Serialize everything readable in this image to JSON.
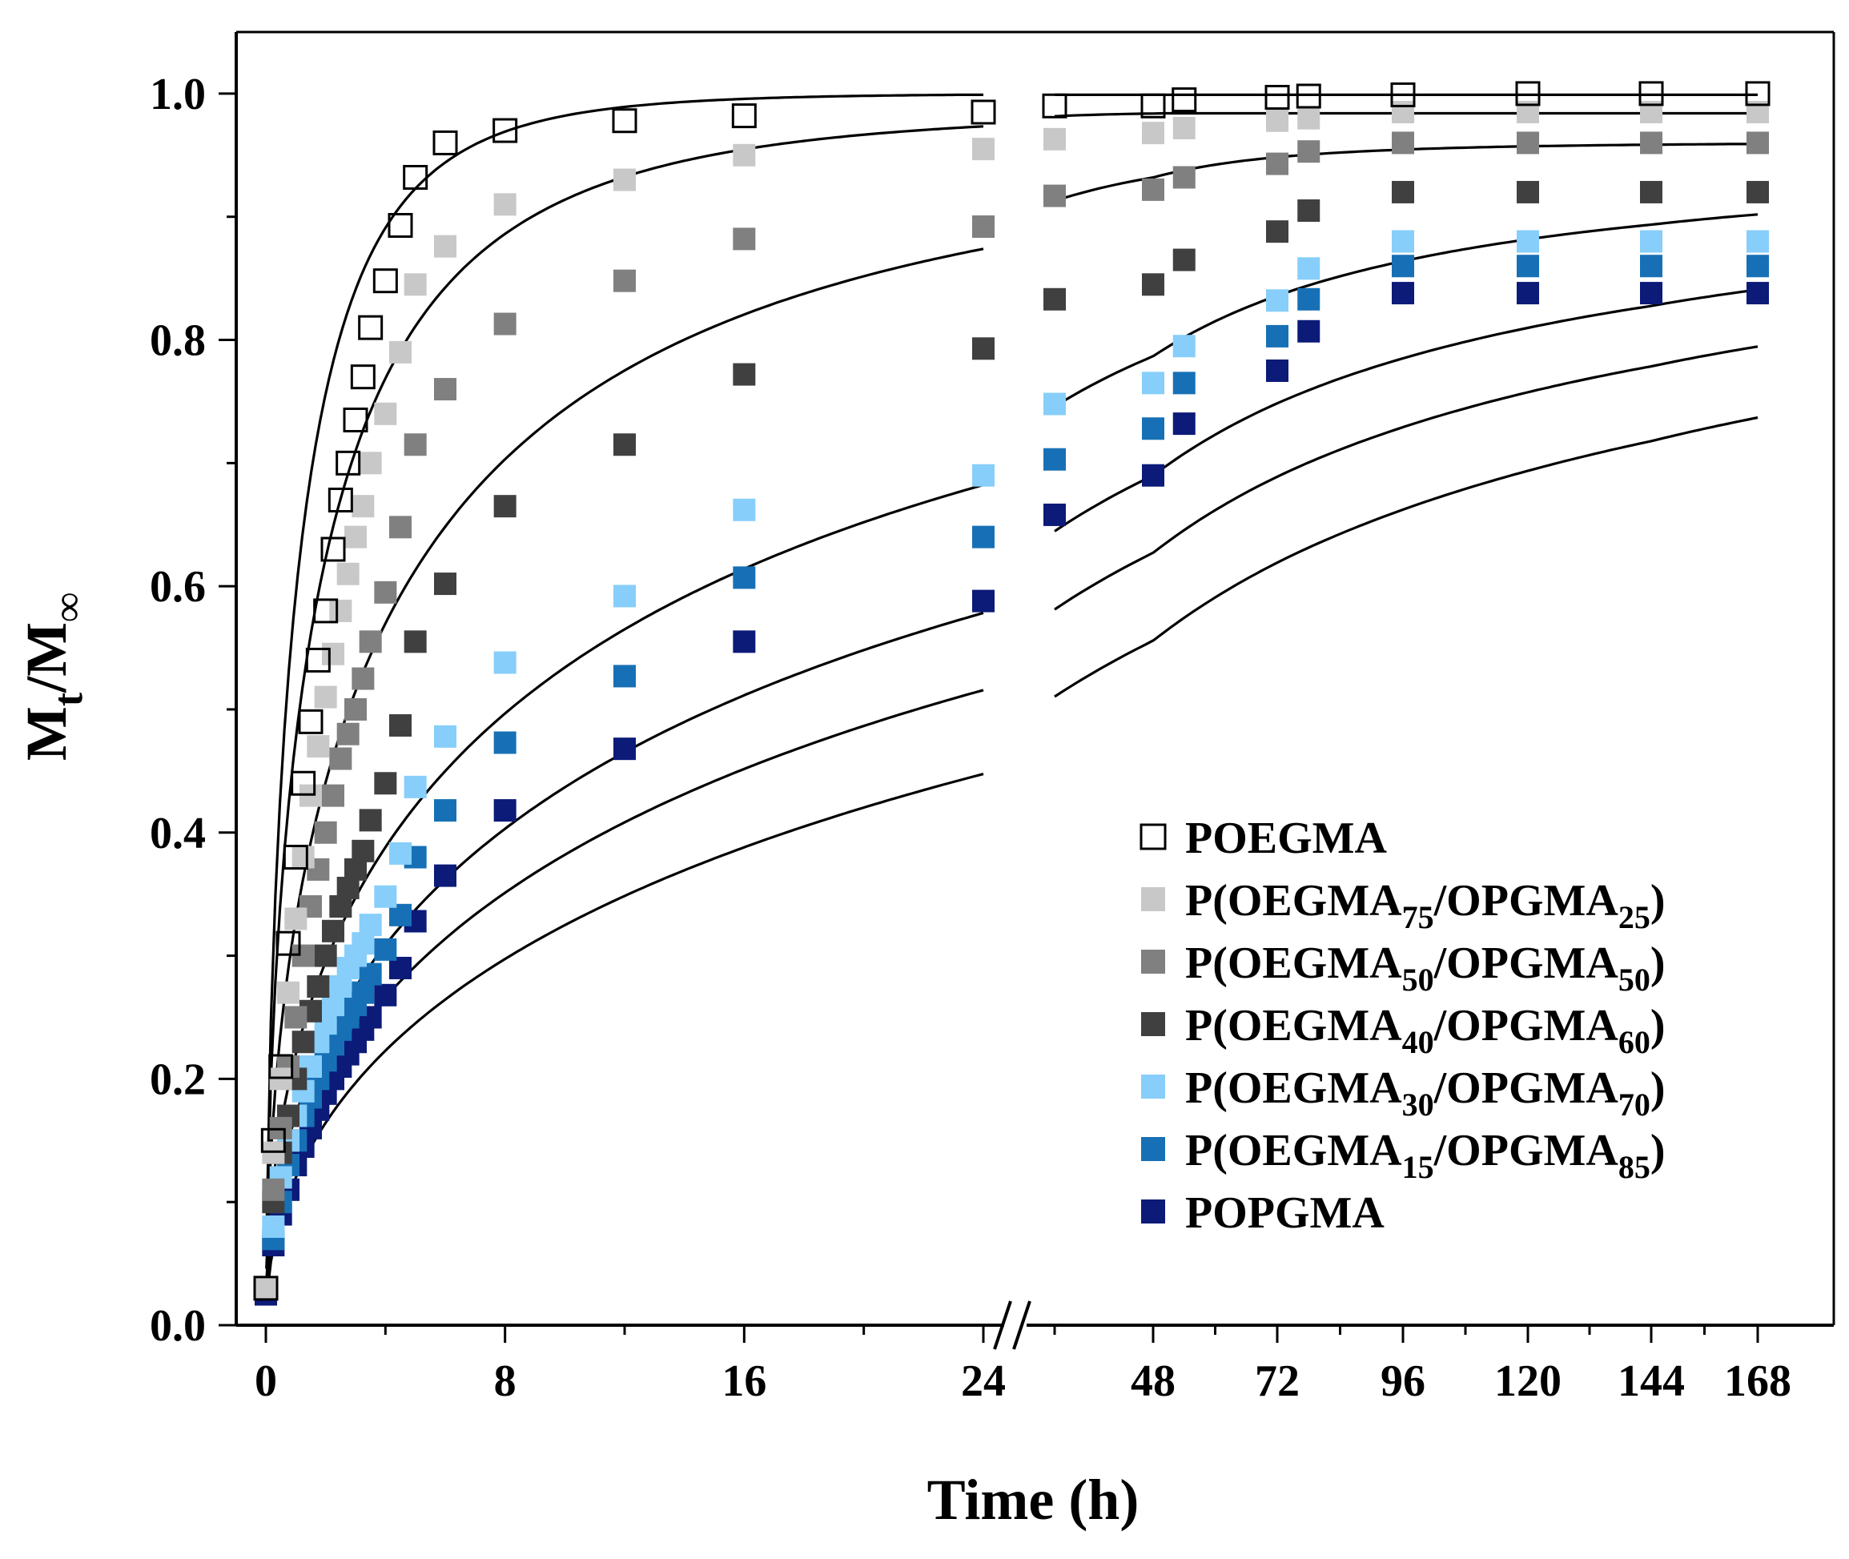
{
  "chart_data": {
    "type": "scatter",
    "xlabel": "Time (h)",
    "ylabel": {
      "base": "M",
      "sub1": "t",
      "sep": "/",
      "base2": "M",
      "sub2": "∞"
    },
    "ylim": [
      0,
      1.05
    ],
    "y_ticks": [
      "0.0",
      "0.2",
      "0.4",
      "0.6",
      "0.8",
      "1.0"
    ],
    "x_ticks_left": [
      "0",
      "8",
      "16",
      "24"
    ],
    "x_ticks_right": [
      "48",
      "72",
      "96",
      "120",
      "144",
      "168"
    ],
    "axis_break": true,
    "x_left_range": [
      0,
      24
    ],
    "x_right_range": [
      36,
      168
    ],
    "grid": false,
    "legend_placement": "lower-right",
    "series": [
      {
        "name": "POEGMA",
        "legend": [
          "POEGMA"
        ],
        "legend_sub": [],
        "color": "#ffffff",
        "stroke": "#000000",
        "open": true,
        "k": 0.3,
        "n": 0.65,
        "plateau": 1.0,
        "x": [
          0,
          0.25,
          0.5,
          0.75,
          1,
          1.25,
          1.5,
          1.75,
          2,
          2.25,
          2.5,
          2.75,
          3,
          3.25,
          3.5,
          4,
          4.5,
          5,
          6,
          8,
          12,
          16,
          24,
          36,
          48,
          54,
          72,
          78,
          96,
          120,
          144,
          168
        ],
        "y": [
          0.03,
          0.15,
          0.21,
          0.31,
          0.38,
          0.44,
          0.49,
          0.54,
          0.58,
          0.63,
          0.67,
          0.7,
          0.735,
          0.77,
          0.81,
          0.848,
          0.893,
          0.932,
          0.96,
          0.97,
          0.978,
          0.982,
          0.985,
          0.99,
          0.99,
          0.995,
          0.997,
          0.998,
          0.999,
          1.0,
          1.0,
          1.0
        ]
      },
      {
        "name": "P(OEGMA75/OPGMA25)",
        "legend": [
          "P(OEGMA",
          "/OPGMA",
          ")"
        ],
        "legend_sub": [
          "75",
          "25"
        ],
        "color": "#c8c8c8",
        "stroke": "none",
        "open": false,
        "k": 0.22,
        "n": 0.6,
        "plateau": 0.985,
        "x": [
          0,
          0.25,
          0.5,
          0.75,
          1,
          1.25,
          1.5,
          1.75,
          2,
          2.25,
          2.5,
          2.75,
          3,
          3.25,
          3.5,
          4,
          4.5,
          5,
          6,
          8,
          12,
          16,
          24,
          36,
          48,
          54,
          72,
          78,
          96,
          120,
          144,
          168
        ],
        "y": [
          0.03,
          0.14,
          0.2,
          0.27,
          0.33,
          0.38,
          0.43,
          0.47,
          0.51,
          0.545,
          0.58,
          0.61,
          0.64,
          0.665,
          0.7,
          0.74,
          0.79,
          0.845,
          0.876,
          0.91,
          0.93,
          0.95,
          0.955,
          0.963,
          0.968,
          0.972,
          0.978,
          0.98,
          0.985,
          0.985,
          0.985,
          0.985
        ]
      },
      {
        "name": "P(OEGMA50/OPGMA50)",
        "legend": [
          "P(OEGMA",
          "/OPGMA",
          ")"
        ],
        "legend_sub": [
          "50",
          "50"
        ],
        "color": "#808080",
        "stroke": "none",
        "open": false,
        "k": 0.14,
        "n": 0.55,
        "plateau": 0.96,
        "x": [
          0,
          0.25,
          0.5,
          0.75,
          1,
          1.25,
          1.5,
          1.75,
          2,
          2.25,
          2.5,
          2.75,
          3,
          3.25,
          3.5,
          4,
          4.5,
          5,
          6,
          8,
          12,
          16,
          24,
          36,
          48,
          54,
          72,
          78,
          96,
          120,
          144,
          168
        ],
        "y": [
          0.03,
          0.11,
          0.16,
          0.21,
          0.25,
          0.3,
          0.34,
          0.37,
          0.4,
          0.43,
          0.46,
          0.48,
          0.5,
          0.525,
          0.555,
          0.595,
          0.648,
          0.715,
          0.76,
          0.813,
          0.848,
          0.882,
          0.892,
          0.917,
          0.922,
          0.932,
          0.943,
          0.953,
          0.96,
          0.96,
          0.96,
          0.96
        ]
      },
      {
        "name": "P(OEGMA40/OPGMA60)",
        "legend": [
          "P(OEGMA",
          "/OPGMA",
          ")"
        ],
        "legend_sub": [
          "40",
          "60"
        ],
        "color": "#404040",
        "stroke": "none",
        "open": false,
        "k": 0.09,
        "n": 0.5,
        "plateau": 0.93,
        "x": [
          0,
          0.25,
          0.5,
          0.75,
          1,
          1.25,
          1.5,
          1.75,
          2,
          2.25,
          2.5,
          2.75,
          3,
          3.25,
          3.5,
          4,
          4.5,
          5,
          6,
          8,
          12,
          16,
          24,
          36,
          48,
          54,
          72,
          78,
          96,
          120,
          144,
          168
        ],
        "y": [
          0.03,
          0.1,
          0.14,
          0.17,
          0.2,
          0.23,
          0.255,
          0.275,
          0.3,
          0.32,
          0.34,
          0.355,
          0.37,
          0.385,
          0.41,
          0.44,
          0.487,
          0.555,
          0.602,
          0.665,
          0.715,
          0.772,
          0.793,
          0.833,
          0.845,
          0.865,
          0.888,
          0.905,
          0.92,
          0.92,
          0.92,
          0.92
        ]
      },
      {
        "name": "P(OEGMA30/OPGMA70)",
        "legend": [
          "P(OEGMA",
          "/OPGMA",
          ")"
        ],
        "legend_sub": [
          "30",
          "70"
        ],
        "color": "#87cefa",
        "stroke": "none",
        "open": false,
        "k": 0.07,
        "n": 0.5,
        "plateau": 0.9,
        "x": [
          0,
          0.25,
          0.5,
          0.75,
          1,
          1.25,
          1.5,
          1.75,
          2,
          2.25,
          2.5,
          2.75,
          3,
          3.25,
          3.5,
          4,
          4.5,
          5,
          6,
          8,
          12,
          16,
          24,
          36,
          48,
          54,
          72,
          78,
          96,
          120,
          144,
          168
        ],
        "y": [
          0.03,
          0.08,
          0.12,
          0.15,
          0.17,
          0.19,
          0.21,
          0.23,
          0.245,
          0.26,
          0.275,
          0.29,
          0.3,
          0.31,
          0.325,
          0.348,
          0.383,
          0.437,
          0.478,
          0.538,
          0.592,
          0.662,
          0.69,
          0.748,
          0.765,
          0.795,
          0.832,
          0.858,
          0.88,
          0.88,
          0.88,
          0.88
        ]
      },
      {
        "name": "P(OEGMA15/OPGMA85)",
        "legend": [
          "P(OEGMA",
          "/OPGMA",
          ")"
        ],
        "legend_sub": [
          "15",
          "85"
        ],
        "color": "#1770b5",
        "stroke": "none",
        "open": false,
        "k": 0.06,
        "n": 0.5,
        "plateau": 0.88,
        "x": [
          0,
          0.25,
          0.5,
          0.75,
          1,
          1.25,
          1.5,
          1.75,
          2,
          2.25,
          2.5,
          2.75,
          3,
          3.25,
          3.5,
          4,
          4.5,
          5,
          6,
          8,
          12,
          16,
          24,
          36,
          48,
          54,
          72,
          78,
          96,
          120,
          144,
          168
        ],
        "y": [
          0.03,
          0.07,
          0.1,
          0.13,
          0.15,
          0.17,
          0.185,
          0.2,
          0.215,
          0.228,
          0.24,
          0.25,
          0.26,
          0.27,
          0.285,
          0.305,
          0.333,
          0.38,
          0.418,
          0.473,
          0.527,
          0.607,
          0.64,
          0.703,
          0.728,
          0.765,
          0.803,
          0.833,
          0.86,
          0.86,
          0.86,
          0.86
        ]
      },
      {
        "name": "POPGMA",
        "legend": [
          "POPGMA"
        ],
        "legend_sub": [],
        "color": "#0c1a78",
        "stroke": "none",
        "open": false,
        "k": 0.05,
        "n": 0.5,
        "plateau": 0.86,
        "x": [
          0,
          0.25,
          0.5,
          0.75,
          1,
          1.25,
          1.5,
          1.75,
          2,
          2.25,
          2.5,
          2.75,
          3,
          3.25,
          3.5,
          4,
          4.5,
          5,
          6,
          8,
          12,
          16,
          24,
          36,
          48,
          54,
          72,
          78,
          96,
          120,
          144,
          168
        ],
        "y": [
          0.025,
          0.065,
          0.09,
          0.11,
          0.13,
          0.145,
          0.16,
          0.175,
          0.188,
          0.2,
          0.21,
          0.22,
          0.23,
          0.24,
          0.25,
          0.268,
          0.29,
          0.328,
          0.365,
          0.418,
          0.468,
          0.555,
          0.588,
          0.658,
          0.69,
          0.732,
          0.775,
          0.807,
          0.838,
          0.838,
          0.838,
          0.838
        ]
      }
    ]
  }
}
